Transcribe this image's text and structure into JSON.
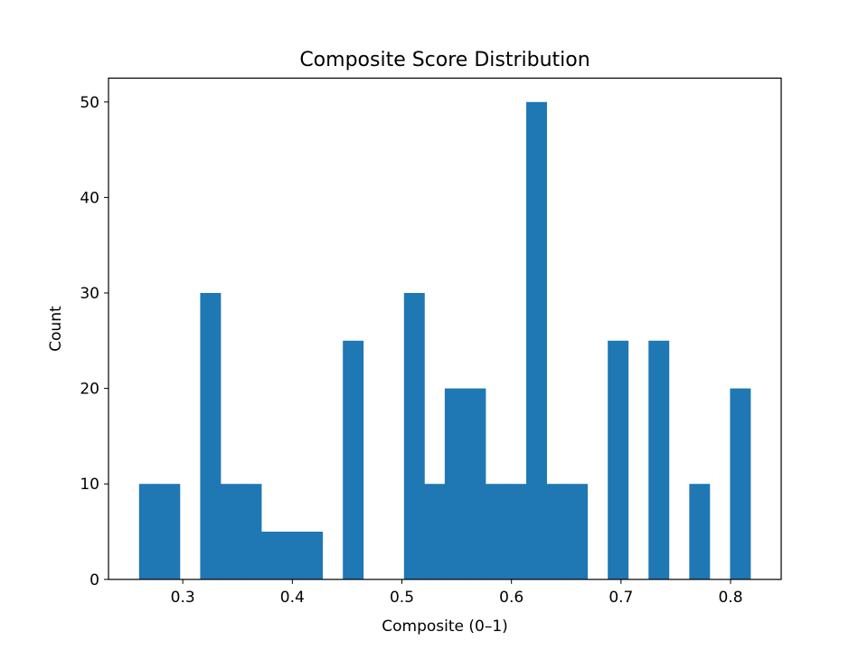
{
  "chart_data": {
    "type": "bar",
    "title": "Composite Score Distribution",
    "xlabel": "Composite (0–1)",
    "ylabel": "Count",
    "xlim": [
      0.2322,
      0.8462
    ],
    "ylim": [
      0,
      52.5
    ],
    "xticks": [
      0.3,
      0.4,
      0.5,
      0.6,
      0.7,
      0.8
    ],
    "xtick_labels": [
      "0.3",
      "0.4",
      "0.5",
      "0.6",
      "0.7",
      "0.8"
    ],
    "yticks": [
      0,
      10,
      20,
      30,
      40,
      50
    ],
    "ytick_labels": [
      "0",
      "10",
      "20",
      "30",
      "40",
      "50"
    ],
    "bar_color": "#1f77b4",
    "grid": false,
    "legend": "none",
    "bins": [
      {
        "x0": 0.2601,
        "x1": 0.2787,
        "value": 10
      },
      {
        "x0": 0.2787,
        "x1": 0.2973,
        "value": 10
      },
      {
        "x0": 0.2973,
        "x1": 0.3159,
        "value": 0
      },
      {
        "x0": 0.3159,
        "x1": 0.3345,
        "value": 30
      },
      {
        "x0": 0.3345,
        "x1": 0.3531,
        "value": 10
      },
      {
        "x0": 0.3531,
        "x1": 0.3717,
        "value": 10
      },
      {
        "x0": 0.3717,
        "x1": 0.3903,
        "value": 5
      },
      {
        "x0": 0.3903,
        "x1": 0.4089,
        "value": 5
      },
      {
        "x0": 0.4089,
        "x1": 0.4275,
        "value": 5
      },
      {
        "x0": 0.4275,
        "x1": 0.4461,
        "value": 0
      },
      {
        "x0": 0.4461,
        "x1": 0.4647,
        "value": 25
      },
      {
        "x0": 0.4647,
        "x1": 0.4833,
        "value": 0
      },
      {
        "x0": 0.4833,
        "x1": 0.5019,
        "value": 0
      },
      {
        "x0": 0.5019,
        "x1": 0.5205,
        "value": 30
      },
      {
        "x0": 0.5205,
        "x1": 0.5391,
        "value": 10
      },
      {
        "x0": 0.5391,
        "x1": 0.5577,
        "value": 20
      },
      {
        "x0": 0.5577,
        "x1": 0.5763,
        "value": 20
      },
      {
        "x0": 0.5763,
        "x1": 0.5949,
        "value": 10
      },
      {
        "x0": 0.5949,
        "x1": 0.6135,
        "value": 10
      },
      {
        "x0": 0.6135,
        "x1": 0.6321,
        "value": 50
      },
      {
        "x0": 0.6321,
        "x1": 0.6507,
        "value": 10
      },
      {
        "x0": 0.6507,
        "x1": 0.6693,
        "value": 10
      },
      {
        "x0": 0.6693,
        "x1": 0.6879,
        "value": 0
      },
      {
        "x0": 0.6879,
        "x1": 0.7065,
        "value": 25
      },
      {
        "x0": 0.7065,
        "x1": 0.7251,
        "value": 0
      },
      {
        "x0": 0.7251,
        "x1": 0.7437,
        "value": 25
      },
      {
        "x0": 0.7437,
        "x1": 0.7623,
        "value": 0
      },
      {
        "x0": 0.7623,
        "x1": 0.7809,
        "value": 10
      },
      {
        "x0": 0.7809,
        "x1": 0.7995,
        "value": 0
      },
      {
        "x0": 0.7995,
        "x1": 0.8181,
        "value": 20
      }
    ]
  }
}
